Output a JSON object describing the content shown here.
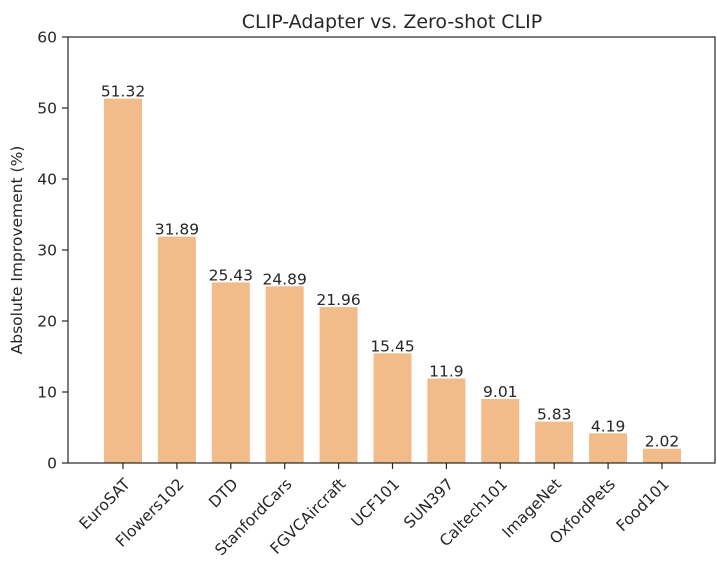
{
  "chart_data": {
    "type": "bar",
    "title": "CLIP-Adapter vs. Zero-shot CLIP",
    "xlabel": "",
    "ylabel": "Absolute Improvement (%)",
    "ylim": [
      0,
      60
    ],
    "yticks": [
      "0",
      "10",
      "20",
      "30",
      "40",
      "50",
      "60"
    ],
    "categories": [
      "EuroSAT",
      "Flowers102",
      "DTD",
      "StanfordCars",
      "FGVCAircraft",
      "UCF101",
      "SUN397",
      "Caltech101",
      "ImageNet",
      "OxfordPets",
      "Food101"
    ],
    "values": [
      51.32,
      31.89,
      25.43,
      24.89,
      21.96,
      15.45,
      11.9,
      9.01,
      5.83,
      4.19,
      2.02
    ],
    "value_labels": [
      "51.32",
      "31.89",
      "25.43",
      "24.89",
      "21.96",
      "15.45",
      "11.9",
      "9.01",
      "5.83",
      "4.19",
      "2.02"
    ],
    "bar_color": "#f2bb8a",
    "grid": false,
    "legend": "none"
  }
}
